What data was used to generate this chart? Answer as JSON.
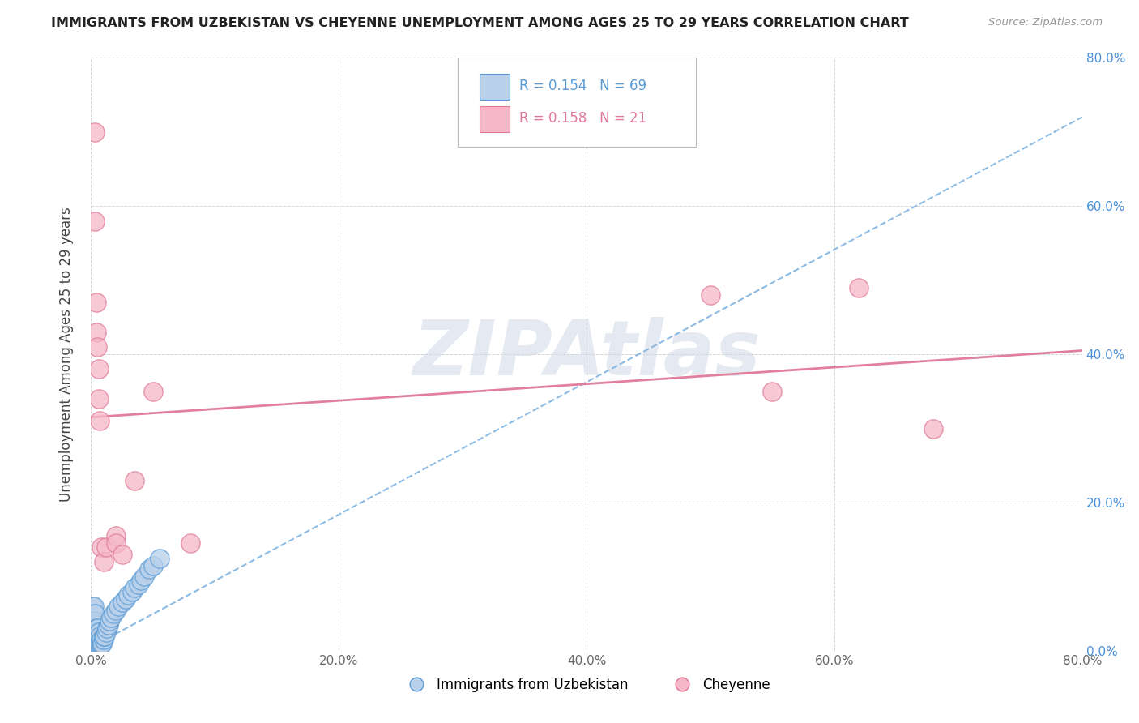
{
  "title": "IMMIGRANTS FROM UZBEKISTAN VS CHEYENNE UNEMPLOYMENT AMONG AGES 25 TO 29 YEARS CORRELATION CHART",
  "source": "Source: ZipAtlas.com",
  "ylabel": "Unemployment Among Ages 25 to 29 years",
  "series1_label": "Immigrants from Uzbekistan",
  "series2_label": "Cheyenne",
  "r1": "0.154",
  "n1": "69",
  "r2": "0.158",
  "n2": "21",
  "xlim": [
    0,
    0.8
  ],
  "ylim": [
    0,
    0.8
  ],
  "series1_face": "#b8d0ea",
  "series1_edge": "#5b9bd5",
  "series2_face": "#f5b8c8",
  "series2_edge": "#e07898",
  "line1_color": "#7ab0e0",
  "line2_color": "#e07898",
  "watermark_color": "#d0d8e8",
  "title_color": "#222222",
  "source_color": "#999999",
  "xtick_color": "#666666",
  "ytick_color": "#4a90d9",
  "blue_x": [
    0.001,
    0.001,
    0.001,
    0.001,
    0.001,
    0.001,
    0.001,
    0.001,
    0.002,
    0.002,
    0.002,
    0.002,
    0.002,
    0.002,
    0.002,
    0.002,
    0.002,
    0.002,
    0.002,
    0.003,
    0.003,
    0.003,
    0.003,
    0.003,
    0.003,
    0.003,
    0.003,
    0.003,
    0.003,
    0.004,
    0.004,
    0.004,
    0.004,
    0.004,
    0.004,
    0.005,
    0.005,
    0.005,
    0.005,
    0.005,
    0.006,
    0.006,
    0.006,
    0.007,
    0.007,
    0.008,
    0.008,
    0.009,
    0.01,
    0.01,
    0.011,
    0.012,
    0.013,
    0.014,
    0.015,
    0.016,
    0.018,
    0.02,
    0.022,
    0.025,
    0.028,
    0.03,
    0.033,
    0.035,
    0.038,
    0.04,
    0.043,
    0.047,
    0.05,
    0.055
  ],
  "blue_y": [
    0.03,
    0.04,
    0.05,
    0.06,
    0.01,
    0.015,
    0.02,
    0.025,
    0.01,
    0.015,
    0.02,
    0.025,
    0.03,
    0.04,
    0.05,
    0.06,
    0.005,
    0.008,
    0.012,
    0.01,
    0.015,
    0.02,
    0.025,
    0.03,
    0.04,
    0.05,
    0.005,
    0.008,
    0.012,
    0.015,
    0.01,
    0.02,
    0.025,
    0.03,
    0.005,
    0.01,
    0.015,
    0.02,
    0.025,
    0.03,
    0.01,
    0.015,
    0.025,
    0.01,
    0.02,
    0.01,
    0.015,
    0.01,
    0.015,
    0.02,
    0.02,
    0.025,
    0.03,
    0.035,
    0.04,
    0.045,
    0.05,
    0.055,
    0.06,
    0.065,
    0.07,
    0.075,
    0.08,
    0.085,
    0.09,
    0.095,
    0.1,
    0.11,
    0.115,
    0.125
  ],
  "pink_x": [
    0.003,
    0.003,
    0.004,
    0.004,
    0.005,
    0.006,
    0.006,
    0.007,
    0.008,
    0.01,
    0.012,
    0.02,
    0.02,
    0.025,
    0.035,
    0.05,
    0.08,
    0.5,
    0.55,
    0.62,
    0.68
  ],
  "pink_y": [
    0.7,
    0.58,
    0.47,
    0.43,
    0.41,
    0.38,
    0.34,
    0.31,
    0.14,
    0.12,
    0.14,
    0.155,
    0.145,
    0.13,
    0.23,
    0.35,
    0.145,
    0.48,
    0.35,
    0.49,
    0.3
  ],
  "line1_x0": 0.0,
  "line1_y0": 0.005,
  "line1_x1": 0.8,
  "line1_y1": 0.72,
  "line2_x0": 0.0,
  "line2_y0": 0.315,
  "line2_x1": 0.8,
  "line2_y1": 0.405
}
